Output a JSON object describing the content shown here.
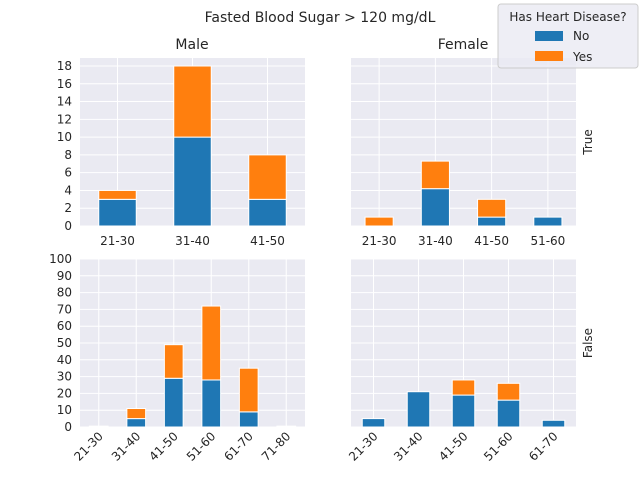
{
  "figure_title": "Fasted Blood Sugar > 120 mg/dL",
  "col_titles": [
    "Male",
    "Female"
  ],
  "row_labels": [
    "True",
    "False"
  ],
  "legend": {
    "title": "Has Heart Disease?",
    "placement": "top-right",
    "entries": [
      {
        "label": "No",
        "color": "#1f77b4"
      },
      {
        "label": "Yes",
        "color": "#ff7f0e"
      }
    ]
  },
  "colors": {
    "plot_bg": "#eaeaf2",
    "grid": "#ffffff",
    "no": "#1f77b4",
    "yes": "#ff7f0e"
  },
  "chart_data": [
    {
      "type": "bar",
      "stacked": true,
      "panel": "top-left",
      "title": "Male",
      "row": "True",
      "categories": [
        "21-30",
        "31-40",
        "41-50"
      ],
      "series": [
        {
          "name": "No",
          "values": [
            3,
            10,
            3
          ]
        },
        {
          "name": "Yes",
          "values": [
            1,
            8,
            5
          ]
        }
      ],
      "ylim": [
        0,
        18.9
      ],
      "yticks": [
        0,
        2,
        4,
        6,
        8,
        10,
        12,
        14,
        16,
        18
      ],
      "xtick_rotation": 0,
      "grid": true
    },
    {
      "type": "bar",
      "stacked": true,
      "panel": "top-right",
      "title": "Female",
      "row": "True",
      "categories": [
        "21-30",
        "31-40",
        "41-50",
        "51-60"
      ],
      "series": [
        {
          "name": "No",
          "values": [
            0,
            4.2,
            1,
            1
          ]
        },
        {
          "name": "Yes",
          "values": [
            1,
            3.1,
            2,
            0
          ]
        }
      ],
      "ylim": [
        0,
        18.9
      ],
      "yticks": [
        0,
        2,
        4,
        6,
        8,
        10,
        12,
        14,
        16,
        18
      ],
      "xtick_rotation": 0,
      "grid": true
    },
    {
      "type": "bar",
      "stacked": true,
      "panel": "bottom-left",
      "row": "False",
      "categories": [
        "21-30",
        "31-40",
        "41-50",
        "51-60",
        "61-70",
        "71-80"
      ],
      "series": [
        {
          "name": "No",
          "values": [
            0.5,
            5,
            29,
            28,
            9,
            0.5
          ]
        },
        {
          "name": "Yes",
          "values": [
            0,
            6,
            20,
            44,
            26,
            0
          ]
        }
      ],
      "ylim": [
        0,
        100
      ],
      "yticks": [
        0,
        10,
        20,
        30,
        40,
        50,
        60,
        70,
        80,
        90,
        100
      ],
      "xtick_rotation": 45,
      "grid": true
    },
    {
      "type": "bar",
      "stacked": true,
      "panel": "bottom-right",
      "row": "False",
      "categories": [
        "21-30",
        "31-40",
        "41-50",
        "51-60",
        "61-70"
      ],
      "series": [
        {
          "name": "No",
          "values": [
            5,
            21,
            19,
            16,
            4
          ]
        },
        {
          "name": "Yes",
          "values": [
            0,
            0,
            9,
            10,
            0
          ]
        }
      ],
      "ylim": [
        0,
        100
      ],
      "yticks": [
        0,
        10,
        20,
        30,
        40,
        50,
        60,
        70,
        80,
        90,
        100
      ],
      "xtick_rotation": 45,
      "grid": true
    }
  ]
}
